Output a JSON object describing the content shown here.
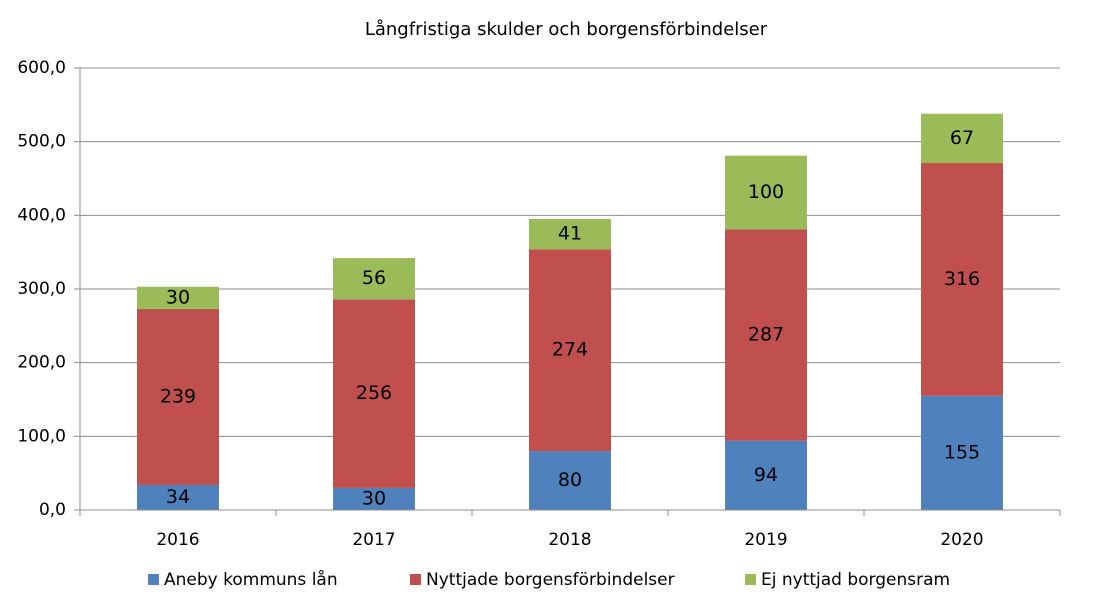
{
  "chart_data": {
    "type": "stacked-bar",
    "title": "Långfristiga skulder och borgensförbindelser",
    "categories": [
      "2016",
      "2017",
      "2018",
      "2019",
      "2020"
    ],
    "series": [
      {
        "name": "Aneby kommuns lån",
        "color": "#4f81bd",
        "values": [
          34,
          30,
          80,
          94,
          155
        ]
      },
      {
        "name": "Nyttjade borgensförbindelser",
        "color": "#c0504d",
        "values": [
          239,
          256,
          274,
          287,
          316
        ]
      },
      {
        "name": "Ej nyttjad borgensram",
        "color": "#9bbb59",
        "values": [
          30,
          56,
          41,
          100,
          67
        ]
      }
    ],
    "ylim": [
      0,
      600
    ],
    "yticks": [
      {
        "value": 0,
        "label": "0,0"
      },
      {
        "value": 100,
        "label": "100,0"
      },
      {
        "value": 200,
        "label": "200,0"
      },
      {
        "value": 300,
        "label": "300,0"
      },
      {
        "value": 400,
        "label": "400,0"
      },
      {
        "value": 500,
        "label": "500,0"
      },
      {
        "value": 600,
        "label": "600,0"
      }
    ],
    "grid": true,
    "legend": "bottom"
  }
}
